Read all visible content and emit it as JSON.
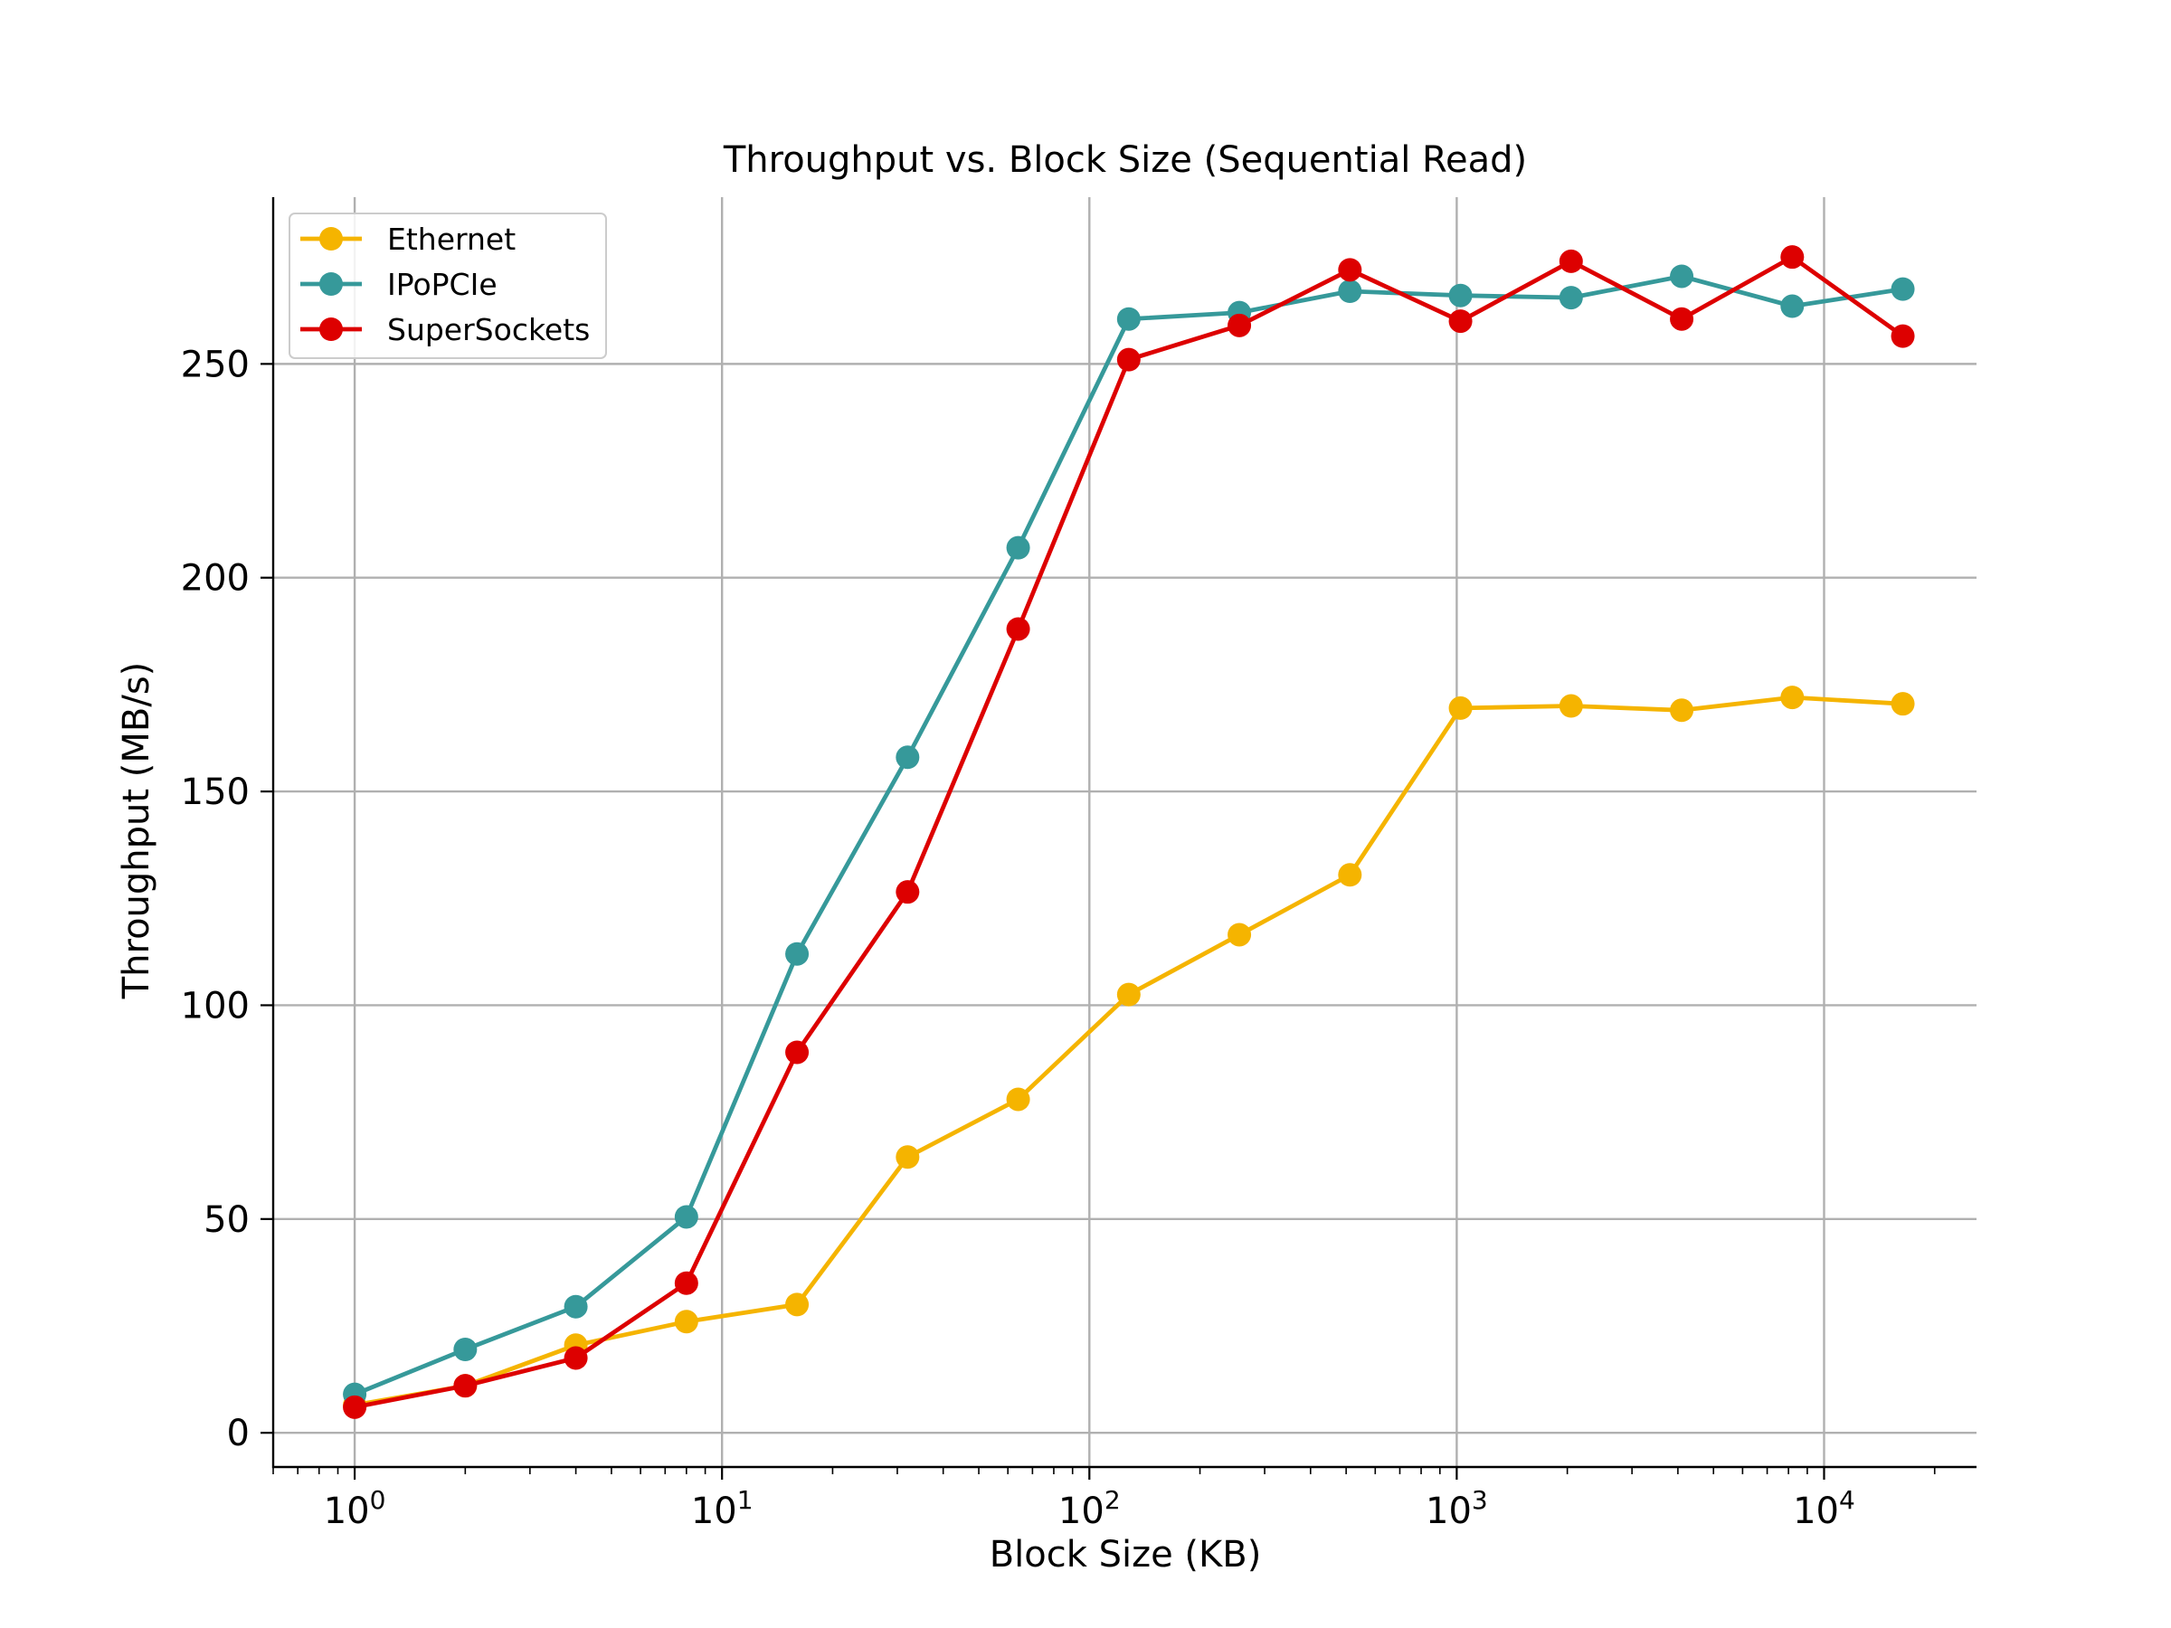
{
  "chart_data": {
    "type": "line",
    "title": "Throughput vs. Block Size (Sequential Read)",
    "xlabel": "Block Size (KB)",
    "ylabel": "Throughput (MB/s)",
    "x_scale": "log",
    "xlim": [
      0.6,
      26000
    ],
    "ylim": [
      -8,
      289
    ],
    "x_ticks": [
      1,
      10,
      100,
      1000,
      10000
    ],
    "x_tick_labels": [
      {
        "base": "10",
        "exp": "0"
      },
      {
        "base": "10",
        "exp": "1"
      },
      {
        "base": "10",
        "exp": "2"
      },
      {
        "base": "10",
        "exp": "3"
      },
      {
        "base": "10",
        "exp": "4"
      }
    ],
    "y_ticks": [
      0,
      50,
      100,
      150,
      200,
      250
    ],
    "y_tick_labels": [
      "0",
      "50",
      "100",
      "150",
      "200",
      "250"
    ],
    "grid": true,
    "legend_position": "upper-left",
    "x": [
      1,
      2,
      4,
      8,
      16,
      32,
      64,
      128,
      256,
      512,
      1024,
      2048,
      4096,
      8192,
      16384
    ],
    "series": [
      {
        "name": "Ethernet",
        "color": "#f5b400",
        "values": [
          6.5,
          11,
          20.5,
          26,
          30,
          64.5,
          78,
          102.5,
          116.5,
          130.5,
          169.5,
          170,
          169,
          172,
          170.5
        ]
      },
      {
        "name": "IPoPCIe",
        "color": "#36999a",
        "values": [
          9,
          19.5,
          29.5,
          50.5,
          112,
          158,
          207,
          260.5,
          262,
          267,
          266,
          265.5,
          270.5,
          263.5,
          267.5
        ]
      },
      {
        "name": "SuperSockets",
        "color": "#dd0000",
        "values": [
          6,
          11,
          17.5,
          35,
          89,
          126.5,
          188,
          251,
          259,
          272,
          260,
          274,
          260.5,
          275,
          256.5
        ]
      }
    ]
  }
}
